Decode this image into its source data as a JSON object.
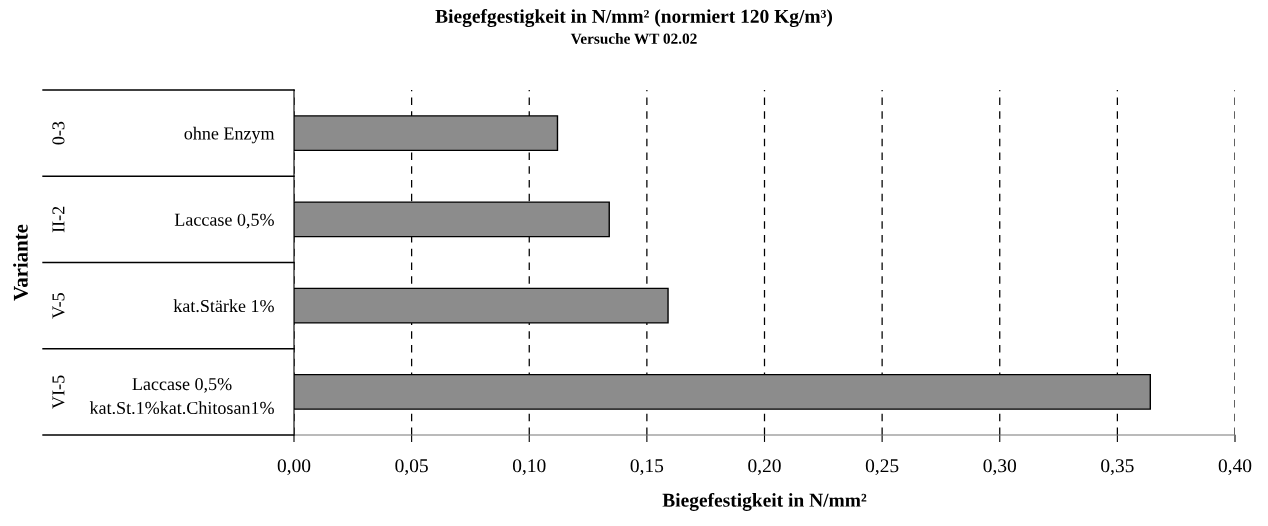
{
  "chart_data": {
    "type": "bar",
    "orientation": "horizontal",
    "title": "Biegefgestigkeit in N/mm² (normiert 120 Kg/m³)",
    "subtitle": "Versuche WT 02.02",
    "xlabel": "Biegefestigkeit in N/mm²",
    "ylabel": "Variante",
    "categories": [
      "ohne Enzym",
      "Laccase 0,5%",
      "kat.Stärke 1%",
      "Laccase 0,5%\nkat.St.1%kat.Chitosan1%"
    ],
    "annotations": [
      "0-3",
      "II-2",
      "V-5",
      "VI-5"
    ],
    "values": [
      0.112,
      0.134,
      0.159,
      0.364
    ],
    "color": "#8c8c8c",
    "xlim": [
      0,
      0.4
    ],
    "xticks": [
      {
        "value": 0,
        "label": "0,00"
      },
      {
        "value": 0.05,
        "label": "0,05"
      },
      {
        "value": 0.1,
        "label": "0,10"
      },
      {
        "value": 0.15,
        "label": "0,15"
      },
      {
        "value": 0.2,
        "label": "0,20"
      },
      {
        "value": 0.25,
        "label": "0,25"
      },
      {
        "value": 0.3,
        "label": "0,30"
      },
      {
        "value": 0.35,
        "label": "0,35"
      },
      {
        "value": 0.4,
        "label": "0,40"
      }
    ],
    "grid": "x",
    "legend": false
  }
}
